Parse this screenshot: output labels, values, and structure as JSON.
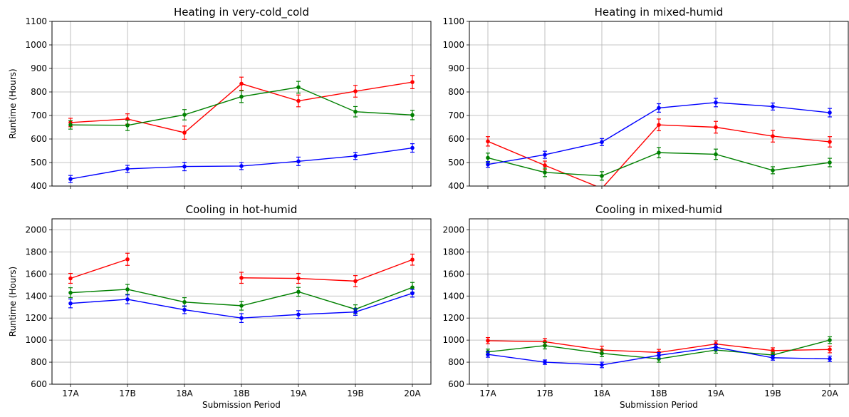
{
  "chart_data": [
    {
      "type": "line",
      "title": "Heating in very-cold_cold",
      "xlabel": "",
      "ylabel": "Runtime (Hours)",
      "categories": [
        "17A",
        "17B",
        "18A",
        "18B",
        "19A",
        "19B",
        "20A"
      ],
      "ylim": [
        400,
        1100
      ],
      "yticks": [
        400,
        500,
        600,
        700,
        800,
        900,
        1000,
        1100
      ],
      "grid": true,
      "series": [
        {
          "color": "#ff0000",
          "values": [
            670,
            685,
            627,
            835,
            762,
            803,
            842
          ],
          "errors": [
            18,
            22,
            28,
            28,
            25,
            25,
            28
          ]
        },
        {
          "color": "#008000",
          "values": [
            660,
            658,
            703,
            780,
            820,
            716,
            702
          ],
          "errors": [
            18,
            22,
            22,
            25,
            25,
            22,
            20
          ]
        },
        {
          "color": "#0000ff",
          "values": [
            430,
            473,
            483,
            485,
            505,
            528,
            562
          ],
          "errors": [
            15,
            15,
            18,
            15,
            18,
            15,
            18
          ]
        }
      ]
    },
    {
      "type": "line",
      "title": "Heating in mixed-humid",
      "xlabel": "",
      "ylabel": "",
      "categories": [
        "17A",
        "17B",
        "18A",
        "18B",
        "19A",
        "19B",
        "20A"
      ],
      "ylim": [
        400,
        1100
      ],
      "yticks": [
        400,
        500,
        600,
        700,
        800,
        900,
        1000,
        1100
      ],
      "grid": true,
      "series": [
        {
          "color": "#ff0000",
          "values": [
            590,
            488,
            390,
            660,
            650,
            612,
            588
          ],
          "errors": [
            20,
            18,
            0,
            25,
            25,
            25,
            22
          ]
        },
        {
          "color": "#008000",
          "values": [
            520,
            458,
            443,
            542,
            535,
            467,
            500
          ],
          "errors": [
            20,
            18,
            18,
            22,
            22,
            15,
            18
          ]
        },
        {
          "color": "#0000ff",
          "values": [
            492,
            533,
            587,
            732,
            755,
            738,
            712
          ],
          "errors": [
            12,
            15,
            15,
            18,
            18,
            15,
            18
          ]
        }
      ]
    },
    {
      "type": "line",
      "title": "Cooling in hot-humid",
      "xlabel": "Submission Period",
      "ylabel": "Runtime (Hours)",
      "categories": [
        "17A",
        "17B",
        "18A",
        "18B",
        "19A",
        "19B",
        "20A"
      ],
      "ylim": [
        600,
        2100
      ],
      "yticks": [
        600,
        800,
        1000,
        1200,
        1400,
        1600,
        1800,
        2000
      ],
      "grid": true,
      "series": [
        {
          "color": "#ff0000",
          "values": [
            1560,
            1733,
            null,
            1565,
            1560,
            1535,
            1730
          ],
          "errors": [
            45,
            55,
            0,
            50,
            45,
            50,
            50
          ]
        },
        {
          "color": "#008000",
          "values": [
            1430,
            1460,
            1345,
            1312,
            1438,
            1280,
            1478
          ],
          "errors": [
            45,
            45,
            40,
            40,
            40,
            40,
            45
          ]
        },
        {
          "color": "#0000ff",
          "values": [
            1333,
            1370,
            1275,
            1200,
            1232,
            1255,
            1425
          ],
          "errors": [
            40,
            40,
            35,
            40,
            35,
            30,
            35
          ]
        }
      ]
    },
    {
      "type": "line",
      "title": "Cooling in mixed-humid",
      "xlabel": "Submission Period",
      "ylabel": "",
      "categories": [
        "17A",
        "17B",
        "18A",
        "18B",
        "19A",
        "19B",
        "20A"
      ],
      "ylim": [
        600,
        2100
      ],
      "yticks": [
        600,
        800,
        1000,
        1200,
        1400,
        1600,
        1800,
        2000
      ],
      "grid": true,
      "series": [
        {
          "color": "#ff0000",
          "values": [
            995,
            985,
            910,
            888,
            965,
            905,
            915
          ],
          "errors": [
            28,
            30,
            35,
            28,
            28,
            25,
            30
          ]
        },
        {
          "color": "#008000",
          "values": [
            893,
            950,
            880,
            830,
            910,
            865,
            1000
          ],
          "errors": [
            25,
            30,
            30,
            30,
            28,
            25,
            30
          ]
        },
        {
          "color": "#0000ff",
          "values": [
            870,
            800,
            775,
            862,
            935,
            840,
            830
          ],
          "errors": [
            25,
            20,
            25,
            25,
            25,
            22,
            25
          ]
        }
      ]
    }
  ]
}
